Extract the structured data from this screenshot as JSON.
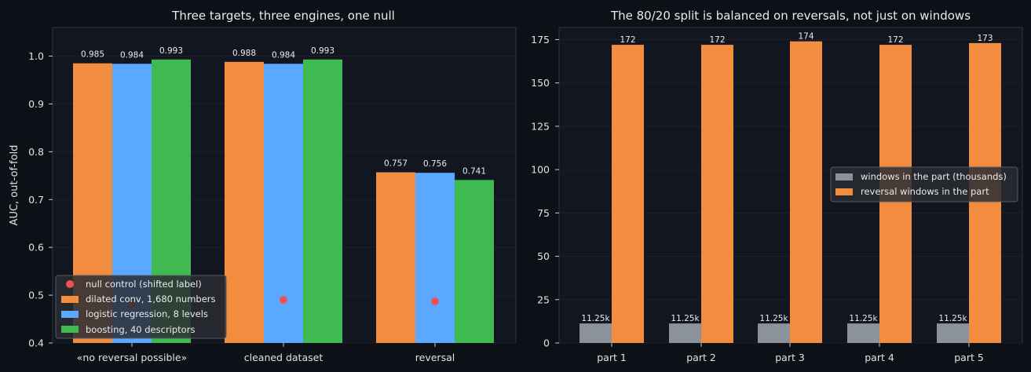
{
  "chart_data": [
    {
      "type": "bar",
      "title": "Three targets, three engines, one null",
      "xlabel": "",
      "ylabel": "AUC, out-of-fold",
      "ylim": [
        0.4,
        1.06
      ],
      "yticks": [
        "0.4",
        "0.5",
        "0.6",
        "0.7",
        "0.8",
        "0.9",
        "1.0"
      ],
      "categories": [
        "«no reversal possible»",
        "cleaned dataset",
        "reversal"
      ],
      "series": [
        {
          "name": "dilated conv, 1,680 numbers",
          "color": "#f28c3f",
          "values": [
            0.985,
            0.988,
            0.757
          ],
          "labels": [
            "0.985",
            "0.988",
            "0.757"
          ]
        },
        {
          "name": "logistic regression, 8 levels",
          "color": "#5aa8ff",
          "values": [
            0.984,
            0.984,
            0.756
          ],
          "labels": [
            "0.984",
            "0.984",
            "0.756"
          ]
        },
        {
          "name": "boosting, 40 descriptors",
          "color": "#3fba50",
          "values": [
            0.993,
            0.993,
            0.741
          ],
          "labels": [
            "0.993",
            "0.993",
            "0.741"
          ]
        }
      ],
      "null_control": {
        "name": "null control (shifted label)",
        "color": "#f05252",
        "values": [
          0.48,
          0.49,
          0.487
        ]
      },
      "legend_position": "lower-left",
      "grid": true
    },
    {
      "type": "bar",
      "title": "The 80/20 split is balanced on reversals, not just on windows",
      "xlabel": "",
      "ylabel": "",
      "ylim": [
        0,
        182
      ],
      "yticks": [
        "0",
        "25",
        "50",
        "75",
        "100",
        "125",
        "150",
        "175"
      ],
      "categories": [
        "part 1",
        "part 2",
        "part 3",
        "part 4",
        "part 5"
      ],
      "series": [
        {
          "name": "windows in the part (thousands)",
          "color": "#8b929b",
          "values": [
            11.25,
            11.25,
            11.25,
            11.25,
            11.25
          ],
          "labels": [
            "11.25k",
            "11.25k",
            "11.25k",
            "11.25k",
            "11.25k"
          ]
        },
        {
          "name": "reversal windows in the part",
          "color": "#f28c3f",
          "values": [
            172,
            172,
            174,
            172,
            173
          ],
          "labels": [
            "172",
            "172",
            "174",
            "172",
            "173"
          ]
        }
      ],
      "legend_position": "center-right",
      "grid": true
    }
  ]
}
